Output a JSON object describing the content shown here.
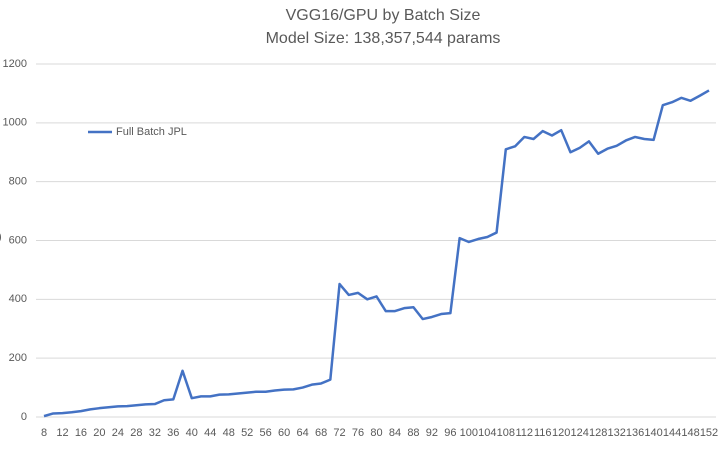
{
  "chart_data": {
    "type": "line",
    "title": "VGG16/GPU by Batch Size",
    "subtitle": "Model Size: 138,357,544 params",
    "y_label": ")",
    "categories": [
      "8",
      null,
      "12",
      null,
      "16",
      null,
      "20",
      null,
      "24",
      null,
      "28",
      null,
      "32",
      null,
      "36",
      null,
      "40",
      null,
      "44",
      null,
      "48",
      null,
      "52",
      null,
      "56",
      null,
      "60",
      null,
      "64",
      null,
      "68",
      null,
      "72",
      null,
      "76",
      null,
      "80",
      null,
      "84",
      null,
      "88",
      null,
      "92",
      null,
      "96",
      null,
      "100",
      null,
      "104",
      null,
      "108",
      null,
      "112",
      null,
      "116",
      null,
      "120",
      null,
      "124",
      null,
      "128",
      null,
      "132",
      null,
      "136",
      null,
      "140",
      null,
      "144",
      null,
      "148",
      null,
      "152"
    ],
    "series": [
      {
        "name": "Full Batch JPL",
        "color": "#4472c4",
        "values": [
          3,
          12,
          13,
          16,
          20,
          26,
          30,
          33,
          36,
          37,
          40,
          43,
          44,
          57,
          60,
          157,
          64,
          70,
          70,
          76,
          77,
          80,
          83,
          86,
          86,
          90,
          93,
          94,
          100,
          110,
          114,
          127,
          452,
          415,
          422,
          400,
          410,
          360,
          360,
          370,
          373,
          333,
          340,
          350,
          353,
          608,
          595,
          605,
          612,
          627,
          910,
          920,
          952,
          945,
          972,
          957,
          975,
          900,
          915,
          937,
          895,
          912,
          922,
          940,
          952,
          945,
          942,
          1060,
          1070,
          1085,
          1075,
          1092,
          1110
        ]
      }
    ],
    "ylim": [
      0,
      1200
    ],
    "yticks": [
      0,
      200,
      400,
      600,
      800,
      1000,
      1200
    ],
    "grid": true,
    "legend": "upper-left"
  }
}
